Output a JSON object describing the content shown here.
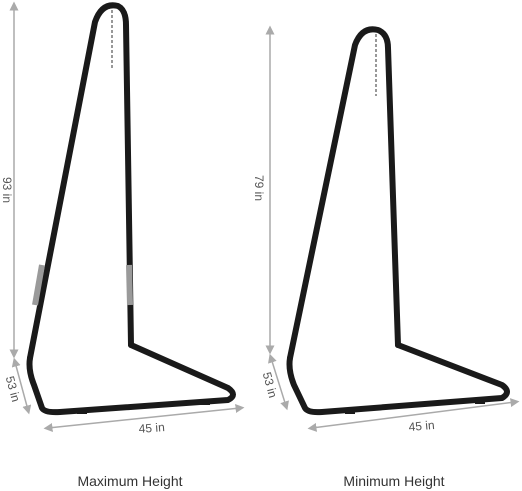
{
  "stands": [
    {
      "height": "93 in",
      "depth": "53 in",
      "width": "45 in",
      "caption": "Maximum Height"
    },
    {
      "height": "79 in",
      "depth": "53 in",
      "width": "45 in",
      "caption": "Minimum Height"
    }
  ]
}
